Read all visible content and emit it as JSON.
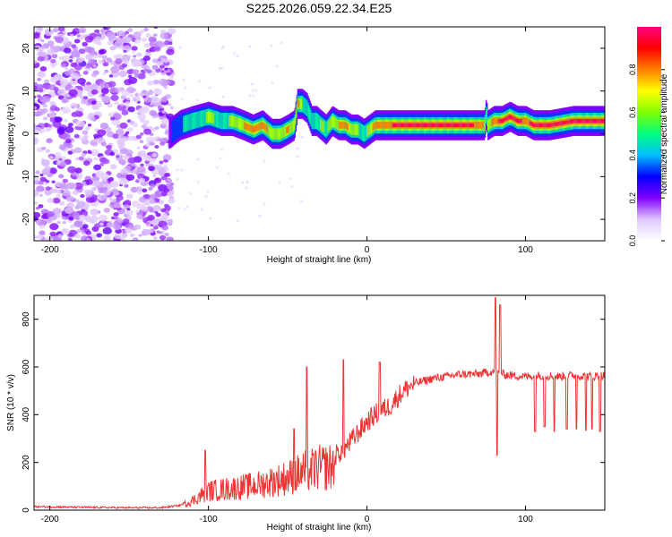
{
  "title": "S225.2026.059.22.34.E25",
  "chart_data": [
    {
      "type": "heatmap",
      "xlabel": "Height of straight line (km)",
      "ylabel": "Frequency (Hz)",
      "xlim": [
        -210,
        150
      ],
      "ylim": [
        -25,
        25
      ],
      "xticks": [
        -200,
        -100,
        0,
        100
      ],
      "yticks": [
        -20,
        -10,
        0,
        10,
        20
      ],
      "ridge": {
        "name": "dominant frequency ridge",
        "x": [
          -125,
          -118,
          -110,
          -100,
          -92,
          -85,
          -78,
          -72,
          -66,
          -60,
          -55,
          -50,
          -46,
          -44,
          -41,
          -38,
          -35,
          -32,
          -29,
          -26,
          -22,
          -18,
          -14,
          -10,
          -6,
          -2,
          5,
          20,
          40,
          60,
          72,
          74,
          75,
          76,
          80,
          85,
          90,
          95,
          100,
          105,
          115,
          130,
          150
        ],
        "y": [
          0,
          2,
          3,
          4,
          3,
          3,
          2,
          1,
          2,
          0,
          0,
          1,
          2,
          7,
          7,
          6,
          3,
          3,
          2,
          1,
          3,
          2,
          2,
          1,
          1,
          0,
          2,
          2,
          2,
          2,
          2,
          2,
          5,
          2,
          3,
          3,
          4,
          3,
          3,
          2,
          2,
          3,
          3
        ],
        "amplitude": [
          0.25,
          0.4,
          0.5,
          0.6,
          0.55,
          0.6,
          0.75,
          0.85,
          0.8,
          0.7,
          0.65,
          0.8,
          0.6,
          0.85,
          0.55,
          0.5,
          0.45,
          0.55,
          0.6,
          0.55,
          0.7,
          0.75,
          0.8,
          0.7,
          0.6,
          0.5,
          0.85,
          0.95,
          0.95,
          0.95,
          0.9,
          0.6,
          0.5,
          0.6,
          0.9,
          0.95,
          0.95,
          0.95,
          0.9,
          0.95,
          0.95,
          0.95,
          0.95
        ]
      },
      "noise_region": "x from -210 to -125 km, scattered low amplitude energy across all frequencies"
    },
    {
      "type": "line",
      "xlabel": "Height of straight line (km)",
      "ylabel": "SNR (10 * v/v)",
      "xlim": [
        -210,
        150
      ],
      "ylim": [
        0,
        900
      ],
      "xticks": [
        -200,
        -100,
        0,
        100
      ],
      "yticks": [
        0,
        200,
        400,
        600,
        800
      ],
      "series": [
        {
          "name": "SNR",
          "color": "#ee3333",
          "x": [
            -210,
            -180,
            -150,
            -130,
            -118,
            -110,
            -100,
            -90,
            -80,
            -70,
            -60,
            -50,
            -40,
            -30,
            -20,
            -15,
            -10,
            -5,
            0,
            5,
            10,
            15,
            20,
            25,
            30,
            40,
            50,
            60,
            70,
            78,
            82,
            86,
            90,
            100,
            110,
            120,
            130,
            140,
            150
          ],
          "y": [
            15,
            12,
            10,
            10,
            20,
            50,
            100,
            110,
            120,
            130,
            150,
            170,
            200,
            220,
            230,
            250,
            290,
            330,
            370,
            400,
            420,
            440,
            480,
            510,
            530,
            550,
            560,
            570,
            570,
            580,
            580,
            570,
            565,
            560,
            565,
            560,
            565,
            560,
            565
          ]
        }
      ],
      "spikes": [
        {
          "x": -102,
          "y": 250
        },
        {
          "x": -46,
          "y": 340
        },
        {
          "x": -38,
          "y": 600
        },
        {
          "x": -15,
          "y": 630
        },
        {
          "x": 8,
          "y": 620
        },
        {
          "x": 81,
          "y": 890
        },
        {
          "x": 82,
          "y": 230
        },
        {
          "x": 84,
          "y": 860
        }
      ],
      "dips": [
        {
          "x": 106,
          "y": 330
        },
        {
          "x": 112,
          "y": 350
        },
        {
          "x": 118,
          "y": 330
        },
        {
          "x": 126,
          "y": 340
        },
        {
          "x": 132,
          "y": 340
        },
        {
          "x": 138,
          "y": 335
        },
        {
          "x": 142,
          "y": 340
        },
        {
          "x": 147,
          "y": 330
        }
      ]
    }
  ],
  "colorbar": {
    "label": "Normalized spectral amplitude",
    "ticks": [
      "0.0",
      "0.2",
      "0.4",
      "0.6",
      "0.8"
    ],
    "colors": [
      "#ffffff",
      "#e0c8ff",
      "#8000ff",
      "#0000ff",
      "#00c0ff",
      "#00ff80",
      "#80ff00",
      "#ffff00",
      "#ff8000",
      "#ff0000",
      "#ff0080"
    ]
  }
}
